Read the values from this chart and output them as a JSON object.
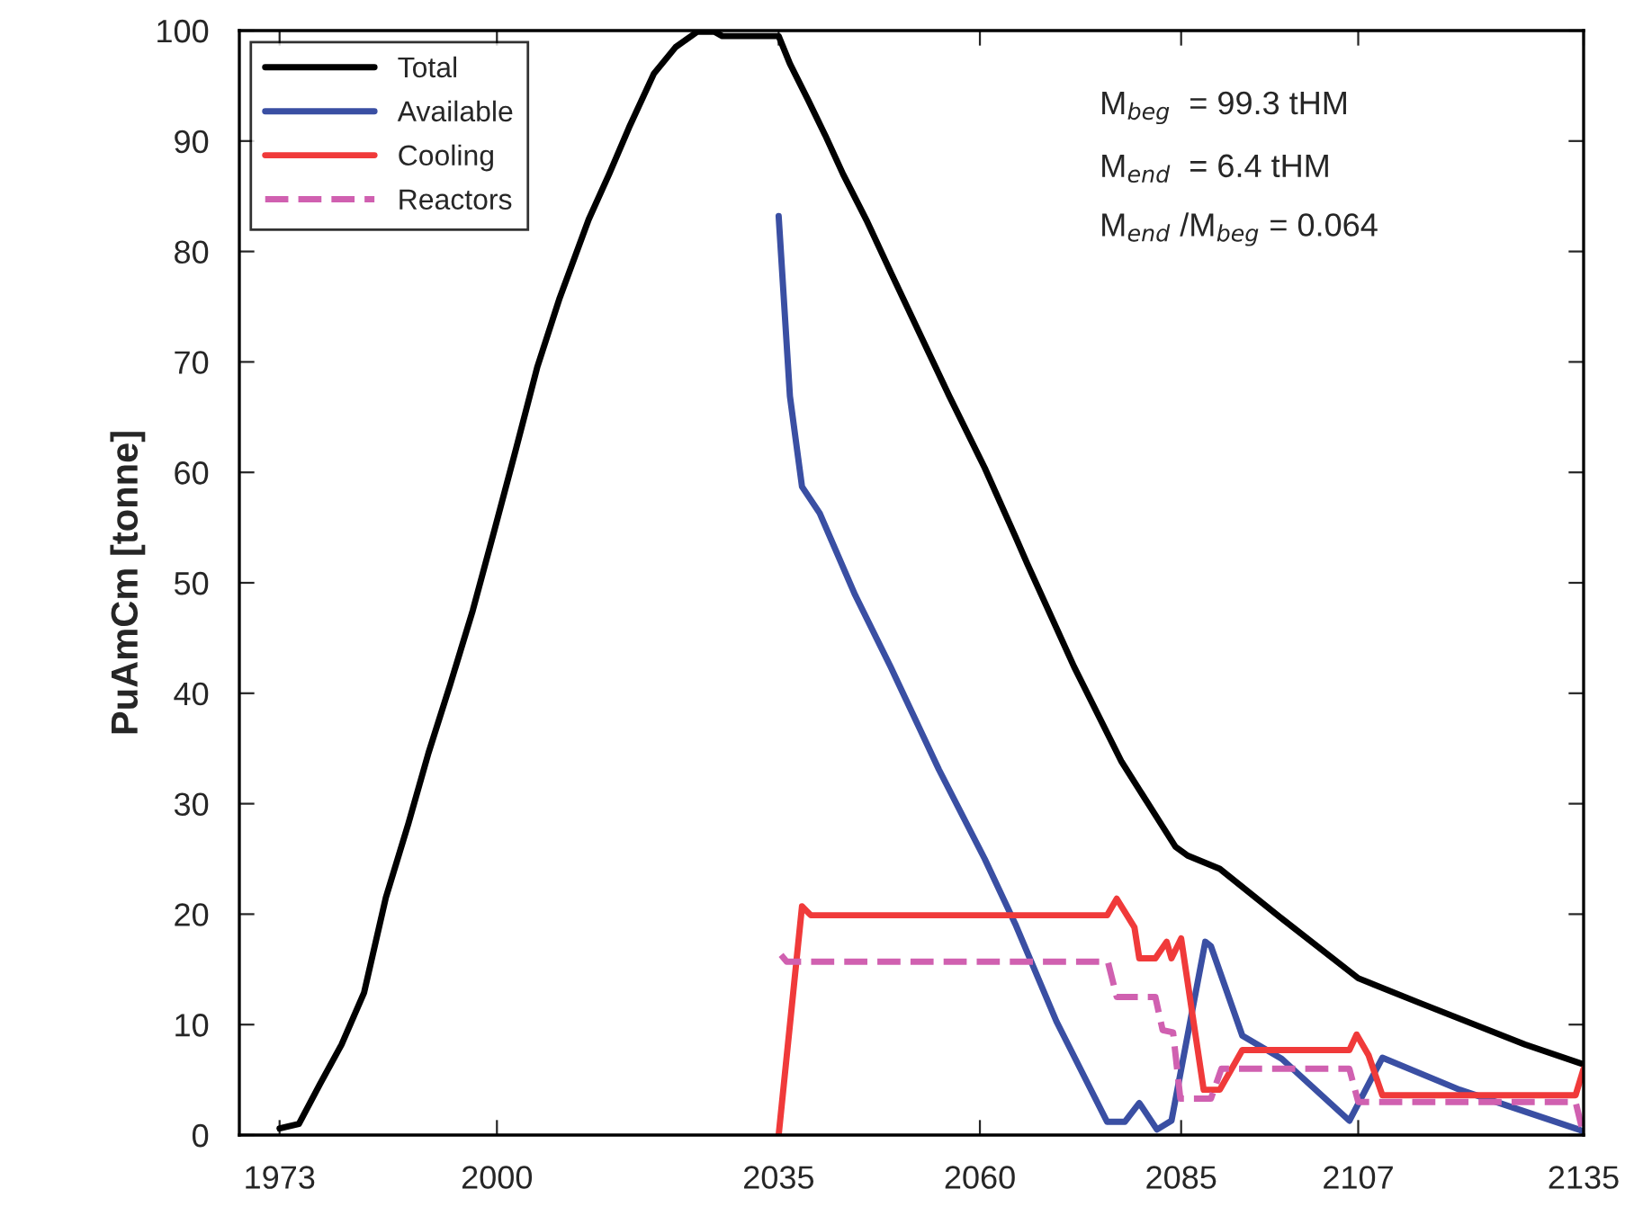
{
  "chart_data": {
    "type": "line",
    "ylabel": "PuAmCm [tonne]",
    "xlim": [
      1968,
      2135
    ],
    "xticks": [
      1973,
      2000,
      2035,
      2060,
      2085,
      2107,
      2135
    ],
    "ylim": [
      0,
      100
    ],
    "yticks": [
      0,
      10,
      20,
      30,
      40,
      50,
      60,
      70,
      80,
      90,
      100
    ],
    "grid": false,
    "legend": "top left",
    "marker": "none",
    "annotations": [
      "M$_{beg}$  = 99.3 tHM",
      "M$_{end}$  = 6.4 tHM",
      "M$_{end}$ /M$_{beg}$ = 0.064"
    ],
    "series": [
      {
        "name": "Total",
        "color": "#000000",
        "line_style": "solid",
        "x": [
          1973,
          1975.4,
          1978,
          1980.7,
          1983.5,
          1986.2,
          1989,
          1991.5,
          1994.2,
          1997,
          1999.7,
          2002.4,
          2005,
          2007.8,
          2011.4,
          2014,
          2016.4,
          2019.5,
          2022.2,
          2024.9,
          2027,
          2028,
          2035,
          2036.4,
          2038.6,
          2040.8,
          2043,
          2046,
          2049,
          2052.7,
          2056.2,
          2060.6,
          2064.4,
          2065.9,
          2071.7,
          2077.6,
          2084.3,
          2085.8,
          2089.8,
          2097.5,
          2107,
          2114.5,
          2127.7,
          2135
        ],
        "values": [
          0.6,
          1.0,
          4.6,
          8.2,
          12.9,
          21.5,
          28.2,
          34.6,
          40.8,
          47.5,
          54.8,
          62.2,
          69.5,
          75.8,
          82.9,
          87.1,
          91.2,
          96.1,
          98.5,
          99.9,
          99.9,
          99.5,
          99.5,
          97,
          93.8,
          90.5,
          87,
          82.7,
          78,
          72.3,
          66.9,
          60.4,
          54.2,
          51.7,
          42.4,
          33.8,
          26.1,
          25.3,
          24.1,
          19.6,
          14.2,
          12,
          8.2,
          6.4
        ]
      },
      {
        "name": "Available",
        "color": "#3a4fa3",
        "line_style": "solid",
        "x": [
          2035,
          2036.4,
          2037.9,
          2040.1,
          2044.5,
          2048.9,
          2054.9,
          2060.6,
          2064.4,
          2069.5,
          2075.8,
          2078,
          2079.8,
          2082,
          2083.8,
          2088,
          2088.7,
          2092.6,
          2097.5,
          2105.9,
          2110,
          2119.6,
          2134.4,
          2135
        ],
        "values": [
          83.2,
          66.9,
          58.7,
          56.3,
          48.9,
          42.4,
          33.1,
          25,
          19.1,
          10.3,
          1.2,
          1.2,
          2.9,
          0.5,
          1.3,
          17.5,
          17.1,
          9,
          6.9,
          1.3,
          7,
          4.1,
          0.5,
          0.3
        ]
      },
      {
        "name": "Cooling",
        "color": "#f03a3a",
        "line_style": "solid",
        "x": [
          2035,
          2037.9,
          2039,
          2075.8,
          2077,
          2079.2,
          2079.8,
          2081.8,
          2083.2,
          2083.8,
          2085,
          2087.8,
          2089.8,
          2092.6,
          2105.9,
          2106.8,
          2108.3,
          2110,
          2134,
          2135
        ],
        "values": [
          0,
          20.7,
          19.9,
          19.9,
          21.4,
          18.8,
          16,
          16,
          17.5,
          16,
          17.8,
          4.1,
          4.1,
          7.7,
          7.7,
          9.1,
          7.2,
          3.6,
          3.6,
          6
        ]
      },
      {
        "name": "Reactors",
        "color": "#d060b0",
        "line_style": "dashed",
        "x": [
          2035.3,
          2036,
          2075.9,
          2077,
          2081.8,
          2082.7,
          2084,
          2084.9,
          2088.7,
          2090,
          2105.9,
          2107,
          2134,
          2135
        ],
        "values": [
          16.3,
          15.7,
          15.7,
          12.5,
          12.5,
          9.5,
          9.3,
          3.3,
          3.3,
          6,
          6,
          3,
          3,
          0
        ]
      }
    ]
  }
}
